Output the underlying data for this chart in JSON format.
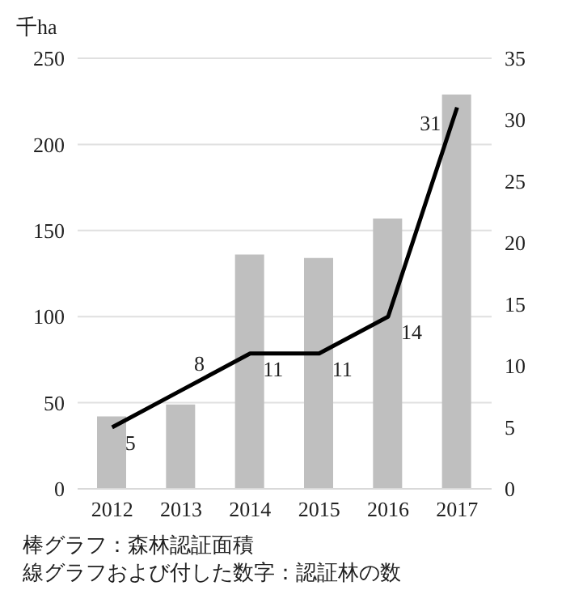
{
  "chart_data": {
    "type": "bar",
    "ylabel": "千ha",
    "categories": [
      "2012",
      "2013",
      "2014",
      "2015",
      "2016",
      "2017"
    ],
    "series": [
      {
        "color": "#bfbfbf",
        "values": [
          42,
          49,
          136,
          134,
          157,
          229
        ]
      },
      {
        "type": "line",
        "axis": "y2",
        "color": "#000000",
        "values": [
          5,
          8,
          11,
          11,
          14,
          31
        ],
        "value_labels": [
          "5",
          "8",
          "11",
          "11",
          "14",
          "31"
        ]
      }
    ],
    "ylim": [
      0,
      250
    ],
    "yticks": [
      0,
      50,
      100,
      150,
      200,
      250
    ],
    "y2lim": [
      0,
      35
    ],
    "y2ticks": [
      0,
      5,
      10,
      15,
      20,
      25,
      30,
      35
    ],
    "grid": "y",
    "legend": false,
    "marker": "none",
    "annotations": [
      "棒グラフ：森林認証面積",
      "線グラフおよび付した数字：認証林の数"
    ]
  }
}
